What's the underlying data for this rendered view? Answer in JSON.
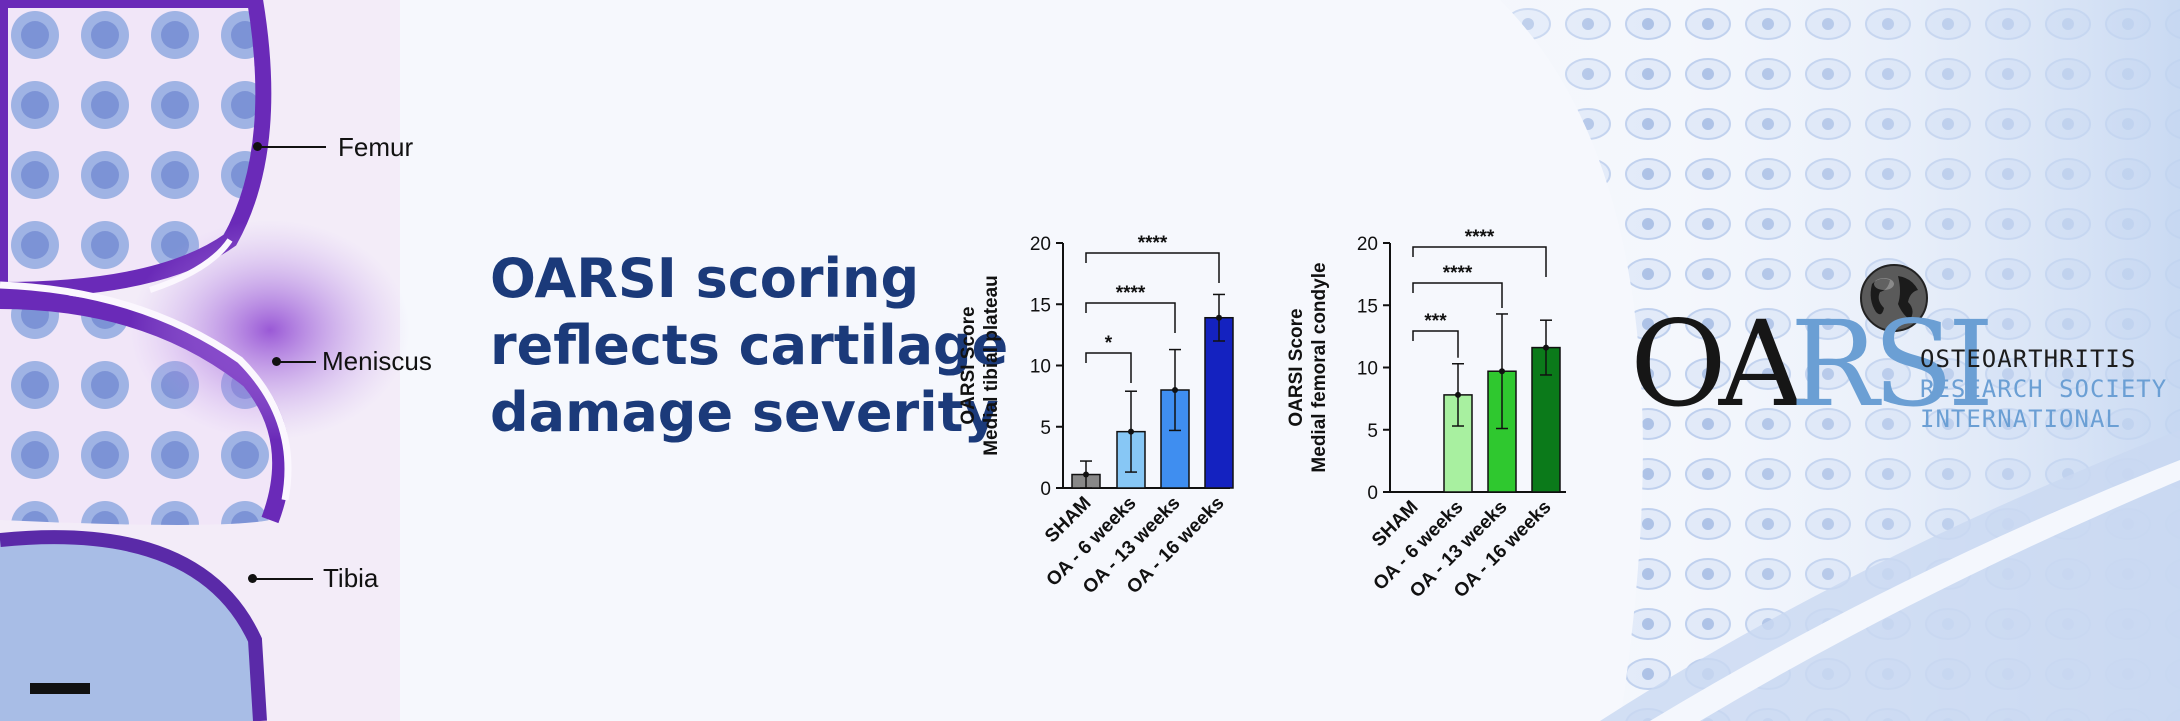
{
  "headline": {
    "line1": "OARSI scoring",
    "line2": "reflects cartilage",
    "line3": "damage severity"
  },
  "anatomy_labels": {
    "femur": "Femur",
    "meniscus": "Meniscus",
    "tibia": "Tibia"
  },
  "logo": {
    "oa": "OA",
    "rsi": "RSI",
    "line1": "OSTEOARTHRITIS",
    "line2": "RESEARCH SOCIETY",
    "line3": "INTERNATIONAL"
  },
  "colors": {
    "headline": "#1b3a7a",
    "tissue_purple": "#7a3cc0",
    "logo_blue": "#6b9fd4"
  },
  "chart_data": [
    {
      "type": "bar",
      "ylabel_line1": "OARSI Score",
      "ylabel_line2": "Medial tibial plateau",
      "categories": [
        "SHAM",
        "OA - 6 weeks",
        "OA - 13 weeks",
        "OA - 16 weeks"
      ],
      "values": [
        1.1,
        4.6,
        8.0,
        13.9
      ],
      "error": [
        1.1,
        3.3,
        3.3,
        1.9
      ],
      "colors": [
        "#888888",
        "#87c7f5",
        "#3f8ef0",
        "#1422c0"
      ],
      "ylim": [
        0,
        20
      ],
      "yticks": [
        0,
        5,
        10,
        15,
        20
      ],
      "significance": [
        {
          "from": 0,
          "to": 1,
          "label": "*"
        },
        {
          "from": 0,
          "to": 2,
          "label": "****"
        },
        {
          "from": 0,
          "to": 3,
          "label": "****"
        }
      ]
    },
    {
      "type": "bar",
      "ylabel_line1": "OARSI Score",
      "ylabel_line2": "Medial femoral condyle",
      "categories": [
        "SHAM",
        "OA - 6 weeks",
        "OA - 13 weeks",
        "OA - 16 weeks"
      ],
      "values": [
        0,
        7.8,
        9.7,
        11.6
      ],
      "error": [
        0,
        2.5,
        4.6,
        2.2
      ],
      "colors": [
        "#888888",
        "#a8f0a0",
        "#2fc82f",
        "#0b7a1a"
      ],
      "ylim": [
        0,
        20
      ],
      "yticks": [
        0,
        5,
        10,
        15,
        20
      ],
      "significance": [
        {
          "from": 0,
          "to": 1,
          "label": "***"
        },
        {
          "from": 0,
          "to": 2,
          "label": "****"
        },
        {
          "from": 0,
          "to": 3,
          "label": "****"
        }
      ]
    }
  ]
}
